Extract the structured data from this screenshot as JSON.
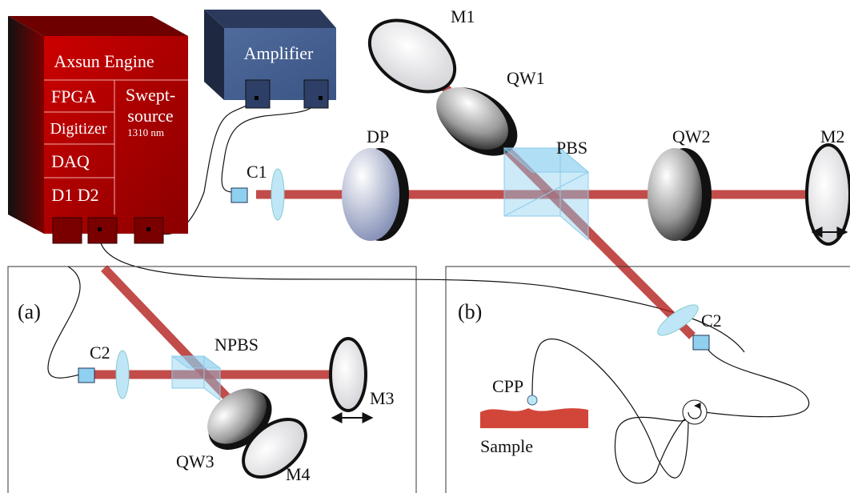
{
  "engine": {
    "title": "Axsun Engine",
    "fpga": "FPGA",
    "digitizer": "Digitizer",
    "daq": "DAQ",
    "detectors": "D1 D2",
    "source": [
      "Swept-",
      "source"
    ],
    "wavelength": "1310 nm"
  },
  "amplifier": {
    "title": "Amplifier"
  },
  "main": {
    "m1": "M1",
    "qw1": "QW1",
    "dp": "DP",
    "pbs": "PBS",
    "qw2": "QW2",
    "m2": "M2",
    "c1": "C1",
    "c2": "C2"
  },
  "inset_a": {
    "label": "(a)",
    "c2": "C2",
    "npbs": "NPBS",
    "m3": "M3",
    "qw3": "QW3",
    "m4": "M4"
  },
  "inset_b": {
    "label": "(b)",
    "c2": "C2",
    "cpp": "CPP",
    "sample": "Sample"
  }
}
